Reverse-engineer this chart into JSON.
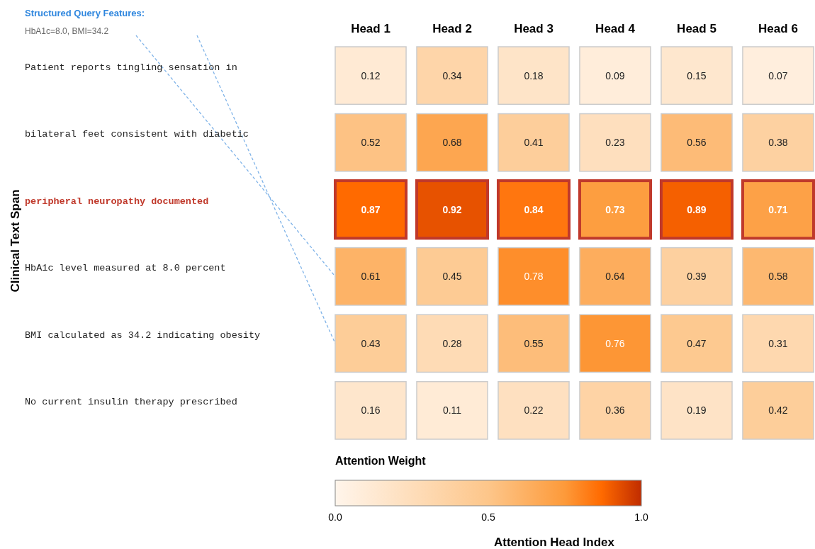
{
  "chart_data": {
    "type": "heatmap",
    "ylabel": "Clinical Text Span",
    "clabel": "Attention Weight",
    "categories": [
      "Head 1",
      "Head 2",
      "Head 3",
      "Head 4",
      "Head 5",
      "Head 6"
    ],
    "y_categories": [
      "Patient reports tingling sensation in",
      "bilateral feet consistent with diabetic",
      "peripheral neuropathy documented",
      "HbA1c level measured at 8.0 percent",
      "BMI calculated as 34.2 indicating obesity",
      "No current insulin therapy prescribed"
    ],
    "cells": [
      [
        0.12,
        0.34,
        0.18,
        0.09,
        0.15,
        0.07
      ],
      [
        0.52,
        0.68,
        0.41,
        0.23,
        0.56,
        0.38
      ],
      [
        0.87,
        0.92,
        0.84,
        0.73,
        0.89,
        0.71
      ],
      [
        0.61,
        0.45,
        0.78,
        0.64,
        0.39,
        0.58
      ],
      [
        0.43,
        0.28,
        0.55,
        0.76,
        0.47,
        0.31
      ],
      [
        0.16,
        0.11,
        0.22,
        0.36,
        0.19,
        0.42
      ]
    ],
    "data_labels": true,
    "clim": [
      0,
      1
    ],
    "cticks": [
      {
        "value": 0,
        "label": "0.0"
      },
      {
        "value": 0.5,
        "label": "0.5"
      },
      {
        "value": 1,
        "label": "1.0"
      }
    ],
    "annotations": [
      "Structured Query Features:",
      "HbA1c=8.0, BMI=34.2",
      "Attention Head Index"
    ]
  }
}
